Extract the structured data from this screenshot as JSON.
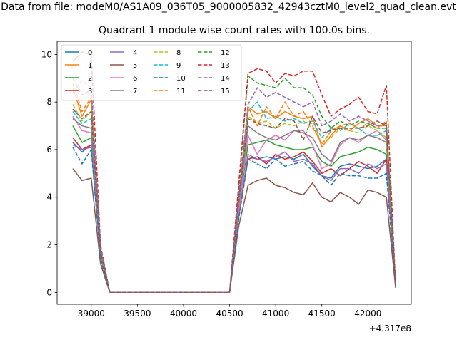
{
  "figure": {
    "suptitle": "Data from file: modeM0/AS1A09_036T05_9000005832_42943cztM0_level2_quad_clean.evt"
  },
  "chart_data": {
    "type": "line",
    "title": "Quadrant 1 module wise count rates with 100.0s bins.",
    "xlabel": "",
    "ylabel": "",
    "x_offset_label": "+4.317e8",
    "xlim": [
      38630,
      42470
    ],
    "ylim": [
      -0.5,
      10.55
    ],
    "xticks": [
      39000,
      39500,
      40000,
      40500,
      41000,
      41500,
      42000
    ],
    "yticks": [
      0,
      2,
      4,
      6,
      8,
      10
    ],
    "grid": false,
    "legend": {
      "placement": "top-left",
      "columns": 4
    },
    "x": [
      38800,
      38900,
      39000,
      39100,
      39200,
      39300,
      39400,
      39500,
      39600,
      39700,
      39800,
      39900,
      40000,
      40100,
      40200,
      40300,
      40400,
      40500,
      40600,
      40700,
      40800,
      40900,
      41000,
      41100,
      41200,
      41300,
      41400,
      41500,
      41600,
      41700,
      41800,
      41900,
      42000,
      42100,
      42200,
      42300
    ],
    "series": [
      {
        "name": "0",
        "color": "#1f77b4",
        "dash": "solid",
        "values": [
          6.3,
          5.9,
          6.2,
          1.5,
          0,
          0,
          0,
          0,
          0,
          0,
          0,
          0,
          0,
          0,
          0,
          0,
          0,
          0,
          3.2,
          5.7,
          5.6,
          5.7,
          5.6,
          5.7,
          5.6,
          5.8,
          5.3,
          4.9,
          4.8,
          5.3,
          5.4,
          5.3,
          5.2,
          5.3,
          5.6,
          0.2
        ]
      },
      {
        "name": "1",
        "color": "#ff7f0e",
        "dash": "solid",
        "values": [
          8.6,
          7.4,
          8.1,
          1.8,
          0,
          0,
          0,
          0,
          0,
          0,
          0,
          0,
          0,
          0,
          0,
          0,
          0,
          0,
          4.0,
          7.8,
          7.5,
          7.6,
          7.3,
          7.6,
          7.4,
          7.3,
          7.4,
          6.1,
          6.6,
          7.0,
          6.8,
          7.1,
          7.3,
          7.0,
          7.0,
          0.3
        ]
      },
      {
        "name": "2",
        "color": "#2ca02c",
        "dash": "solid",
        "values": [
          7.0,
          6.3,
          6.5,
          1.6,
          0,
          0,
          0,
          0,
          0,
          0,
          0,
          0,
          0,
          0,
          0,
          0,
          0,
          0,
          3.6,
          6.2,
          6.3,
          6.4,
          6.2,
          6.1,
          6.0,
          6.0,
          6.1,
          5.5,
          5.3,
          5.7,
          5.8,
          5.9,
          6.1,
          6.0,
          5.8,
          0.3
        ]
      },
      {
        "name": "3",
        "color": "#d62728",
        "dash": "solid",
        "values": [
          6.5,
          6.0,
          6.2,
          1.5,
          0,
          0,
          0,
          0,
          0,
          0,
          0,
          0,
          0,
          0,
          0,
          0,
          0,
          0,
          3.3,
          5.6,
          5.7,
          5.4,
          5.8,
          5.6,
          5.7,
          5.9,
          5.5,
          5.0,
          5.2,
          4.9,
          5.2,
          5.5,
          5.3,
          5.0,
          5.6,
          0.3
        ]
      },
      {
        "name": "4",
        "color": "#9467bd",
        "dash": "solid",
        "values": [
          6.2,
          6.0,
          6.1,
          1.5,
          0,
          0,
          0,
          0,
          0,
          0,
          0,
          0,
          0,
          0,
          0,
          0,
          0,
          0,
          3.3,
          5.8,
          5.6,
          5.5,
          5.7,
          5.9,
          5.5,
          5.6,
          5.4,
          4.9,
          4.7,
          5.2,
          5.2,
          5.0,
          5.4,
          5.2,
          5.4,
          0.2
        ]
      },
      {
        "name": "5",
        "color": "#8c564b",
        "dash": "solid",
        "values": [
          5.2,
          4.7,
          4.8,
          1.2,
          0,
          0,
          0,
          0,
          0,
          0,
          0,
          0,
          0,
          0,
          0,
          0,
          0,
          0,
          2.8,
          4.5,
          4.7,
          4.8,
          4.5,
          4.4,
          4.2,
          4.1,
          4.6,
          4.0,
          3.8,
          4.2,
          4.0,
          3.7,
          4.3,
          4.2,
          4.0,
          0.2
        ]
      },
      {
        "name": "6",
        "color": "#e377c2",
        "dash": "solid",
        "values": [
          7.4,
          6.8,
          6.7,
          1.6,
          0,
          0,
          0,
          0,
          0,
          0,
          0,
          0,
          0,
          0,
          0,
          0,
          0,
          0,
          3.5,
          6.6,
          5.8,
          6.4,
          6.6,
          6.4,
          6.8,
          6.8,
          6.2,
          5.2,
          5.4,
          6.2,
          6.5,
          6.3,
          6.6,
          6.8,
          6.4,
          0.3
        ]
      },
      {
        "name": "7",
        "color": "#7f7f7f",
        "dash": "solid",
        "values": [
          7.3,
          7.0,
          6.9,
          1.6,
          0,
          0,
          0,
          0,
          0,
          0,
          0,
          0,
          0,
          0,
          0,
          0,
          0,
          0,
          3.7,
          7.0,
          6.7,
          6.5,
          6.4,
          6.6,
          6.8,
          6.7,
          6.5,
          5.8,
          5.5,
          6.3,
          6.5,
          6.4,
          6.6,
          6.5,
          6.3,
          0.3
        ]
      },
      {
        "name": "8",
        "color": "#bcbd22",
        "dash": "dashed",
        "values": [
          7.9,
          7.2,
          7.6,
          1.7,
          0,
          0,
          0,
          0,
          0,
          0,
          0,
          0,
          0,
          0,
          0,
          0,
          0,
          0,
          3.9,
          7.4,
          7.1,
          7.2,
          6.9,
          7.1,
          7.0,
          7.2,
          6.9,
          6.3,
          6.5,
          6.9,
          6.8,
          6.7,
          7.0,
          6.8,
          6.5,
          0.3
        ]
      },
      {
        "name": "9",
        "color": "#17becf",
        "dash": "dashed",
        "values": [
          7.6,
          7.1,
          7.3,
          1.7,
          0,
          0,
          0,
          0,
          0,
          0,
          0,
          0,
          0,
          0,
          0,
          0,
          0,
          0,
          3.9,
          7.6,
          8.0,
          7.3,
          7.4,
          7.2,
          7.3,
          7.1,
          7.2,
          6.5,
          6.9,
          6.8,
          7.1,
          6.9,
          6.6,
          6.6,
          6.8,
          0.3
        ]
      },
      {
        "name": "10",
        "color": "#1f77b4",
        "dash": "dashed",
        "values": [
          6.1,
          5.4,
          6.0,
          1.4,
          0,
          0,
          0,
          0,
          0,
          0,
          0,
          0,
          0,
          0,
          0,
          0,
          0,
          0,
          3.1,
          5.6,
          5.4,
          5.2,
          5.6,
          5.3,
          5.4,
          5.5,
          5.1,
          4.9,
          4.5,
          5.0,
          4.9,
          4.9,
          4.8,
          4.8,
          5.0,
          0.2
        ]
      },
      {
        "name": "11",
        "color": "#ff7f0e",
        "dash": "dashed",
        "values": [
          8.8,
          7.6,
          8.2,
          1.8,
          0,
          0,
          0,
          0,
          0,
          0,
          0,
          0,
          0,
          0,
          0,
          0,
          0,
          0,
          4.0,
          7.8,
          7.0,
          7.8,
          7.3,
          8.0,
          7.4,
          7.6,
          7.0,
          6.2,
          6.8,
          7.0,
          7.1,
          6.9,
          7.1,
          6.9,
          7.2,
          0.3
        ]
      },
      {
        "name": "12",
        "color": "#2ca02c",
        "dash": "dashed",
        "values": [
          9.0,
          8.3,
          8.5,
          1.9,
          0,
          0,
          0,
          0,
          0,
          0,
          0,
          0,
          0,
          0,
          0,
          0,
          0,
          0,
          4.4,
          9.1,
          8.8,
          8.7,
          8.6,
          9.0,
          8.6,
          8.6,
          8.3,
          7.4,
          6.9,
          7.2,
          7.0,
          7.2,
          7.1,
          6.9,
          6.9,
          0.3
        ]
      },
      {
        "name": "13",
        "color": "#d62728",
        "dash": "dashed",
        "values": [
          9.7,
          10.1,
          10.0,
          2.0,
          0,
          0,
          0,
          0,
          0,
          0,
          0,
          0,
          0,
          0,
          0,
          0,
          0,
          0,
          4.6,
          9.2,
          9.4,
          9.3,
          8.8,
          9.2,
          9.1,
          9.3,
          9.3,
          8.3,
          7.4,
          7.7,
          7.9,
          8.2,
          7.6,
          7.5,
          8.7,
          0.3
        ]
      },
      {
        "name": "14",
        "color": "#9467bd",
        "dash": "dashed",
        "values": [
          8.4,
          8.9,
          8.6,
          1.9,
          0,
          0,
          0,
          0,
          0,
          0,
          0,
          0,
          0,
          0,
          0,
          0,
          0,
          0,
          4.1,
          7.9,
          8.6,
          8.2,
          8.4,
          8.2,
          8.0,
          7.8,
          8.0,
          7.0,
          7.2,
          7.5,
          7.2,
          7.4,
          7.2,
          7.0,
          7.1,
          0.3
        ]
      },
      {
        "name": "15",
        "color": "#8c564b",
        "dash": "dashed",
        "values": [
          7.7,
          7.3,
          7.6,
          1.7,
          0,
          0,
          0,
          0,
          0,
          0,
          0,
          0,
          0,
          0,
          0,
          0,
          0,
          0,
          3.9,
          7.3,
          7.1,
          7.0,
          6.9,
          7.3,
          7.2,
          6.4,
          7.4,
          6.7,
          6.8,
          6.9,
          6.9,
          6.9,
          7.0,
          7.2,
          7.0,
          0.3
        ]
      }
    ]
  }
}
